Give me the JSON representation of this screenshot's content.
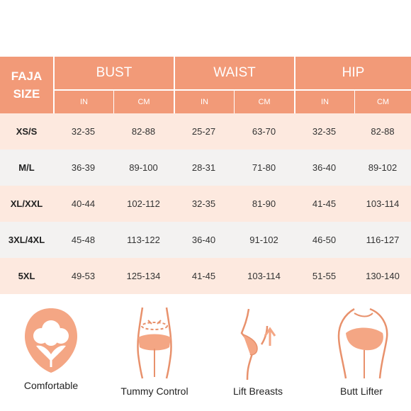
{
  "table": {
    "corner_label_line1": "FAJA",
    "corner_label_line2": "SIZE",
    "groups": [
      "BUST",
      "WAIST",
      "HIP"
    ],
    "units": [
      "IN",
      "CM",
      "IN",
      "CM",
      "IN",
      "CM"
    ],
    "rows": [
      {
        "size": "XS/S",
        "values": [
          "32-35",
          "82-88",
          "25-27",
          "63-70",
          "32-35",
          "82-88"
        ]
      },
      {
        "size": "M/L",
        "values": [
          "36-39",
          "89-100",
          "28-31",
          "71-80",
          "36-40",
          "89-102"
        ]
      },
      {
        "size": "XL/XXL",
        "values": [
          "40-44",
          "102-112",
          "32-35",
          "81-90",
          "41-45",
          "103-114"
        ]
      },
      {
        "size": "3XL/4XL",
        "values": [
          "45-48",
          "113-122",
          "36-40",
          "91-102",
          "46-50",
          "116-127"
        ]
      },
      {
        "size": "5XL",
        "values": [
          "49-53",
          "125-134",
          "41-45",
          "103-114",
          "51-55",
          "130-140"
        ]
      }
    ]
  },
  "features": [
    {
      "icon": "cotton-flower-icon",
      "label": "Comfortable"
    },
    {
      "icon": "tummy-control-icon",
      "label": "Tummy Control"
    },
    {
      "icon": "lift-breasts-icon",
      "label": "Lift Breasts"
    },
    {
      "icon": "butt-lifter-icon",
      "label": "Butt Lifter"
    }
  ],
  "colors": {
    "accent": "#f29a78",
    "row_pink": "#fde9df",
    "row_grey": "#f3f2f1",
    "icon_fill": "#f4a684",
    "icon_stroke": "#e8916c"
  }
}
